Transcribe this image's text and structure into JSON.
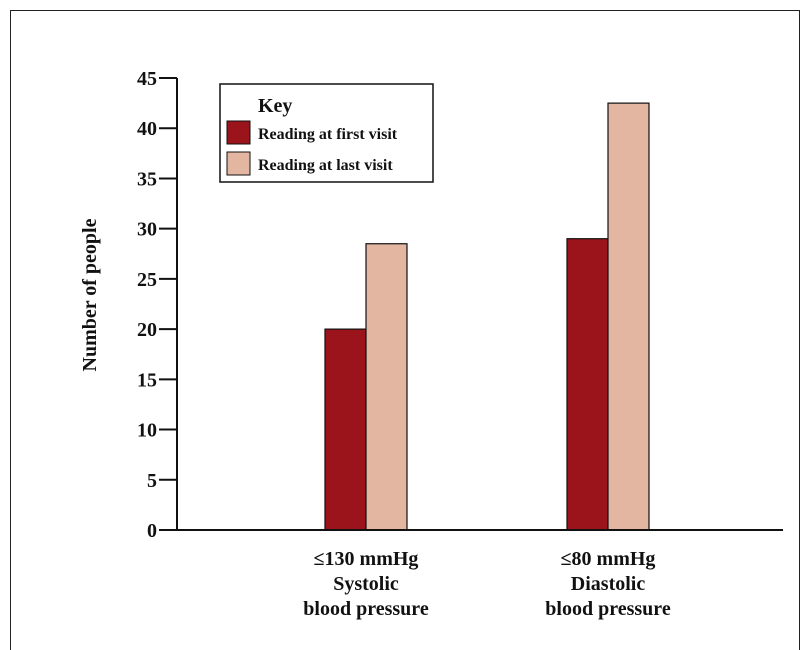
{
  "chart_data": {
    "type": "bar",
    "categories": [
      [
        "≤130 mmHg",
        "Systolic",
        "blood pressure"
      ],
      [
        "≤80 mmHg",
        "Diastolic",
        "blood pressure"
      ]
    ],
    "series": [
      {
        "name": "Reading at first visit",
        "values": [
          20,
          29
        ],
        "color": "#9b141c"
      },
      {
        "name": "Reading at last visit",
        "values": [
          28.5,
          42.5
        ],
        "color": "#e2b6a1"
      }
    ],
    "title": "",
    "xlabel": "",
    "ylabel": "Number of people",
    "ylim": [
      0,
      45
    ],
    "yticks": [
      0,
      5,
      10,
      15,
      20,
      25,
      30,
      35,
      40,
      45
    ],
    "legend": {
      "title": "Key",
      "position": "top-left"
    },
    "grid": false
  }
}
